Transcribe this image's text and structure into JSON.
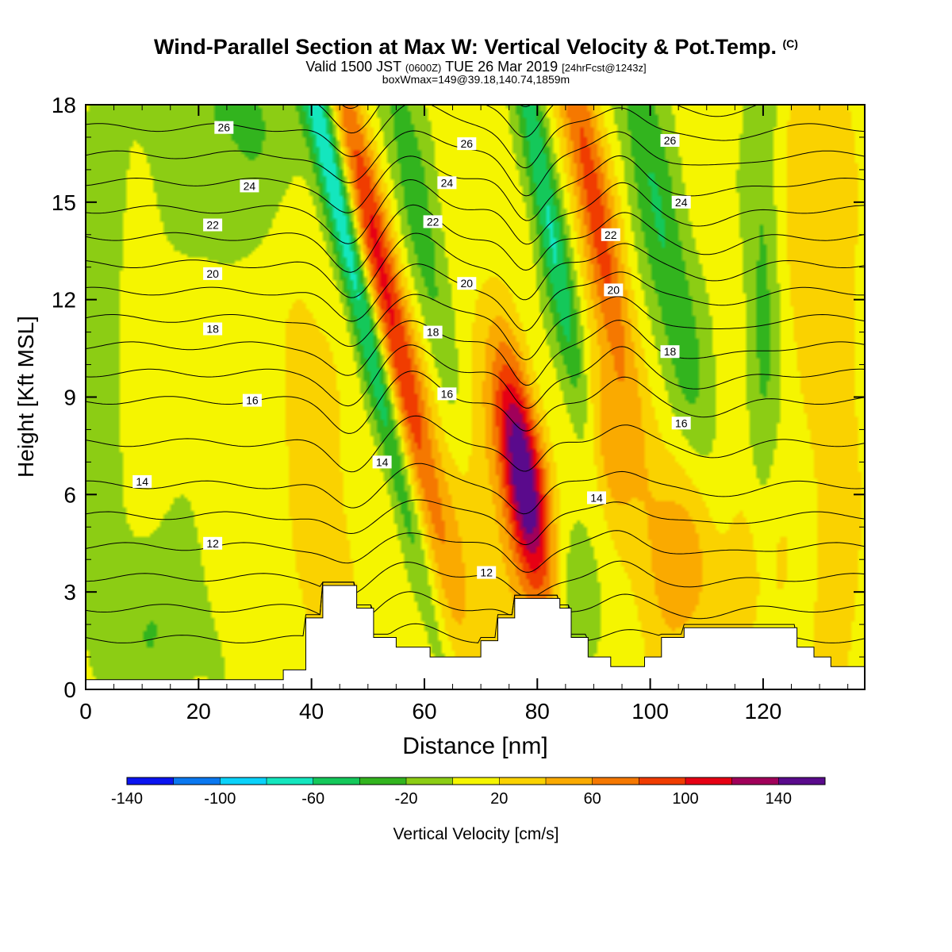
{
  "title": {
    "main": "Wind-Parallel Section at Max W: Vertical Velocity & Pot.Temp.",
    "mark": "(C)",
    "valid_a": "Valid 1500 JST",
    "valid_b": "(0600Z)",
    "valid_c": "TUE 26 Mar 2019",
    "valid_d": "[24hrFcst@1243z]",
    "box": "boxWmax=149@39.18,140.74,1859m"
  },
  "chart_data": {
    "type": "heatmap",
    "xlabel": "Distance [nm]",
    "ylabel": "Height [Kft MSL]",
    "xlim": [
      0,
      138
    ],
    "ylim": [
      0,
      18
    ],
    "xticks": [
      0,
      20,
      40,
      60,
      80,
      100,
      120
    ],
    "yticks": [
      0,
      3,
      6,
      9,
      12,
      15,
      18
    ],
    "colorbar": {
      "label": "Vertical Velocity [cm/s]",
      "levels": [
        -140,
        -120,
        -100,
        -80,
        -60,
        -40,
        -20,
        0,
        20,
        40,
        60,
        80,
        100,
        120,
        140,
        160
      ],
      "tick_labels": [
        -140,
        -100,
        -60,
        -20,
        20,
        60,
        100,
        140
      ],
      "colors": [
        "#0a14f0",
        "#0a78f0",
        "#0ad2fa",
        "#14e6be",
        "#14c85a",
        "#32b41e",
        "#8ccd14",
        "#f5f500",
        "#fad200",
        "#faaa00",
        "#f57800",
        "#f03c00",
        "#e60014",
        "#a0005a",
        "#5a0a8c"
      ]
    },
    "terrain": [
      [
        0,
        0.3
      ],
      [
        35,
        0.3
      ],
      [
        35,
        0.6
      ],
      [
        39,
        0.6
      ],
      [
        39,
        2.2
      ],
      [
        42,
        2.2
      ],
      [
        42,
        3.2
      ],
      [
        48,
        3.2
      ],
      [
        48,
        2.5
      ],
      [
        51,
        2.5
      ],
      [
        51,
        1.6
      ],
      [
        55,
        1.6
      ],
      [
        55,
        1.3
      ],
      [
        61,
        1.3
      ],
      [
        61,
        1.0
      ],
      [
        70,
        1.0
      ],
      [
        70,
        1.5
      ],
      [
        73,
        1.5
      ],
      [
        73,
        2.2
      ],
      [
        76,
        2.2
      ],
      [
        76,
        2.8
      ],
      [
        84,
        2.8
      ],
      [
        84,
        2.5
      ],
      [
        86,
        2.5
      ],
      [
        86,
        1.6
      ],
      [
        89,
        1.6
      ],
      [
        89,
        1.0
      ],
      [
        93,
        1.0
      ],
      [
        93,
        0.7
      ],
      [
        99,
        0.7
      ],
      [
        99,
        1.0
      ],
      [
        102,
        1.0
      ],
      [
        102,
        1.6
      ],
      [
        106,
        1.6
      ],
      [
        106,
        1.9
      ],
      [
        126,
        1.9
      ],
      [
        126,
        1.3
      ],
      [
        129,
        1.3
      ],
      [
        129,
        1.0
      ],
      [
        132,
        1.0
      ],
      [
        132,
        0.7
      ],
      [
        138,
        0.7
      ]
    ],
    "updrafts": [
      {
        "x": 51.5,
        "y": 13.5,
        "sx": 2.2,
        "sy": 6,
        "amp": 95,
        "tilt": -1.2
      },
      {
        "x": 90,
        "y": 15.0,
        "sx": 2.5,
        "sy": 5,
        "amp": 85,
        "tilt": -1.0
      },
      {
        "x": 77.5,
        "y": 6.6,
        "sx": 2.6,
        "sy": 2.6,
        "amp": 150,
        "tilt": -0.8
      },
      {
        "x": 42,
        "y": 5,
        "sx": 4,
        "sy": 7,
        "amp": 30,
        "tilt": -0.6
      },
      {
        "x": 68,
        "y": 5.5,
        "sx": 7,
        "sy": 5,
        "amp": 40,
        "tilt": -1.0
      },
      {
        "x": 92,
        "y": 7.5,
        "sx": 3,
        "sy": 2,
        "amp": 45,
        "tilt": -0.5
      },
      {
        "x": 105,
        "y": 4,
        "sx": 5,
        "sy": 2.5,
        "amp": 45,
        "tilt": 0
      },
      {
        "x": 118,
        "y": 3.5,
        "sx": 5,
        "sy": 2.5,
        "amp": 30,
        "tilt": 0
      },
      {
        "x": 133,
        "y": 8,
        "sx": 3,
        "sy": 9,
        "amp": 30,
        "tilt": 0
      },
      {
        "x": 127,
        "y": 15,
        "sx": 3,
        "sy": 4,
        "amp": 25,
        "tilt": 0
      }
    ],
    "downdrafts": [
      {
        "x": 46,
        "y": 14,
        "sx": 1.8,
        "sy": 8,
        "amp": -80,
        "tilt": -1.3
      },
      {
        "x": 61,
        "y": 12.5,
        "sx": 2.6,
        "sy": 6,
        "amp": -45,
        "tilt": -1.0
      },
      {
        "x": 82,
        "y": 14.5,
        "sx": 1.8,
        "sy": 5,
        "amp": -70,
        "tilt": -1.0
      },
      {
        "x": 102,
        "y": 14,
        "sx": 3,
        "sy": 6,
        "amp": -45,
        "tilt": -1.0
      },
      {
        "x": 120,
        "y": 12,
        "sx": 2,
        "sy": 8,
        "amp": -30,
        "tilt": 0
      },
      {
        "x": 28,
        "y": 17.5,
        "sx": 12,
        "sy": 2.5,
        "amp": -30,
        "tilt": 0
      },
      {
        "x": 12,
        "y": 2,
        "sx": 6,
        "sy": 2,
        "amp": -25,
        "tilt": 0
      },
      {
        "x": 3,
        "y": 10,
        "sx": 2,
        "sy": 6,
        "amp": -22,
        "tilt": 0
      },
      {
        "x": 87,
        "y": 2.5,
        "sx": 2.5,
        "sy": 1.5,
        "amp": -30,
        "tilt": 0
      }
    ],
    "contour_labels": [
      {
        "text": "26",
        "x": 24.5,
        "y": 17.3
      },
      {
        "text": "24",
        "x": 29,
        "y": 15.5
      },
      {
        "text": "22",
        "x": 22.5,
        "y": 14.3
      },
      {
        "text": "20",
        "x": 22.5,
        "y": 12.8
      },
      {
        "text": "18",
        "x": 22.5,
        "y": 11.1
      },
      {
        "text": "16",
        "x": 29.5,
        "y": 8.9
      },
      {
        "text": "14",
        "x": 10,
        "y": 6.4
      },
      {
        "text": "12",
        "x": 22.5,
        "y": 4.5
      },
      {
        "text": "26",
        "x": 67.5,
        "y": 16.8
      },
      {
        "text": "24",
        "x": 64,
        "y": 15.6
      },
      {
        "text": "22",
        "x": 61.5,
        "y": 14.4
      },
      {
        "text": "20",
        "x": 67.5,
        "y": 12.5
      },
      {
        "text": "18",
        "x": 61.5,
        "y": 11.0
      },
      {
        "text": "16",
        "x": 64,
        "y": 9.1
      },
      {
        "text": "14",
        "x": 52.5,
        "y": 7.0
      },
      {
        "text": "12",
        "x": 71,
        "y": 3.6
      },
      {
        "text": "26",
        "x": 103.5,
        "y": 16.9
      },
      {
        "text": "24",
        "x": 105.5,
        "y": 15.0
      },
      {
        "text": "22",
        "x": 93,
        "y": 14.0
      },
      {
        "text": "20",
        "x": 93.5,
        "y": 12.3
      },
      {
        "text": "18",
        "x": 103.5,
        "y": 10.4
      },
      {
        "text": "16",
        "x": 105.5,
        "y": 8.2
      },
      {
        "text": "14",
        "x": 90.5,
        "y": 5.9
      }
    ]
  }
}
